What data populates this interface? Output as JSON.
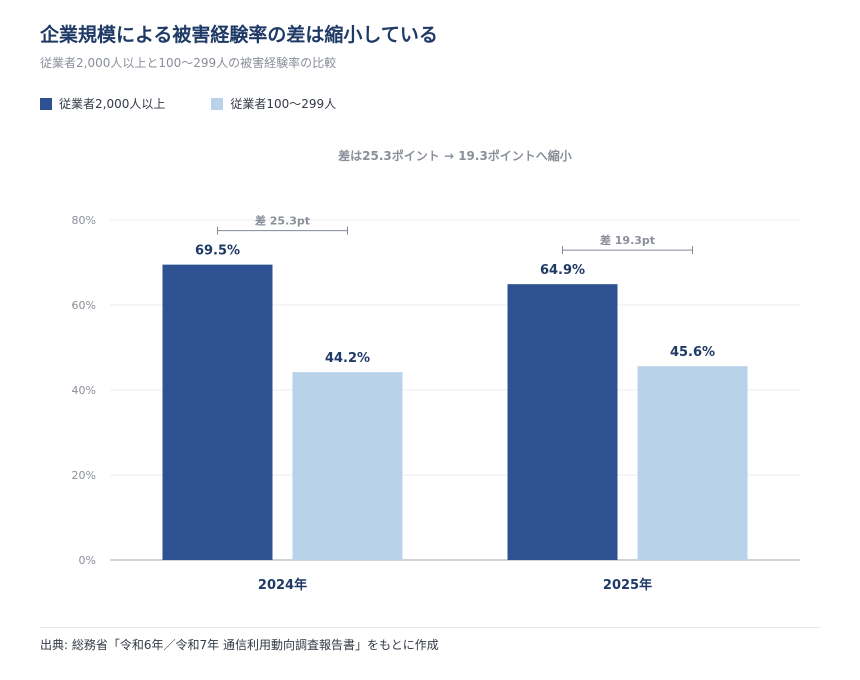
{
  "header": {
    "title": "企業規模による被害経験率の差は縮小している",
    "subtitle": "従業者2,000人以上と100〜299人の被害経験率の比較"
  },
  "legend": {
    "items": [
      {
        "label": "従業者2,000人以上",
        "color": "#2d5191"
      },
      {
        "label": "従業者100〜299人",
        "color": "#b8d2ea"
      }
    ]
  },
  "colors": {
    "series_large": "#2d5191",
    "series_small": "#b8d2ea",
    "axis_text": "#8a8f99",
    "value_label": "#1f3a66",
    "gridline": "#ececec",
    "bracket": "#7f8896"
  },
  "chart_data": {
    "type": "bar",
    "title": "差は25.3ポイント → 19.3ポイントへ縮小",
    "categories": [
      "2024年",
      "2025年"
    ],
    "series": [
      {
        "name": "従業者2,000人以上",
        "values": [
          69.5,
          64.9
        ],
        "labels": [
          "69.5%",
          "64.9%"
        ]
      },
      {
        "name": "従業者100〜299人",
        "values": [
          44.2,
          45.6
        ],
        "labels": [
          "44.2%",
          "45.6%"
        ]
      }
    ],
    "gap_annotations": [
      "差 25.3pt",
      "差 19.3pt"
    ],
    "yticks": [
      0,
      20,
      40,
      60,
      80
    ],
    "ytick_labels": [
      "0%",
      "20%",
      "40%",
      "60%",
      "80%"
    ],
    "ylim": [
      0,
      80
    ],
    "grid": true,
    "legend_position": "top-left"
  },
  "footer": {
    "source": "出典: 総務省「令和6年／令和7年 通信利用動向調査報告書」をもとに作成"
  }
}
